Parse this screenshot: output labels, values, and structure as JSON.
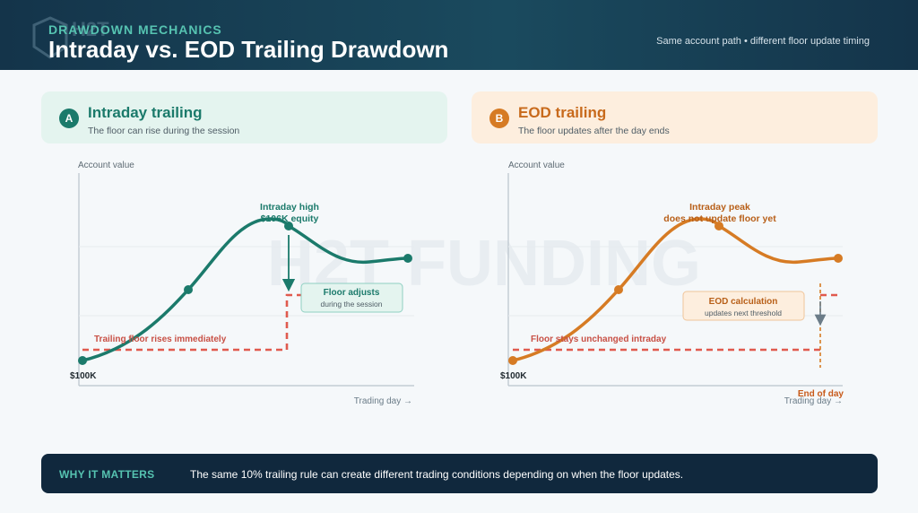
{
  "header": {
    "logo_text": "H2T",
    "eyebrow": "DRAWDOWN MECHANICS",
    "title": "Intraday vs. EOD Trailing Drawdown",
    "subtitle": "Same account path • different floor update timing"
  },
  "watermark": "H2T FUNDING",
  "panels": [
    {
      "badge": "A",
      "title": "Intraday trailing",
      "subtitle": "The floor can rise during the session",
      "accent": "#1b7a6b"
    },
    {
      "badge": "B",
      "title": "EOD trailing",
      "subtitle": "The floor updates after the day ends",
      "accent": "#d67b24"
    }
  ],
  "charts": {
    "intraday": {
      "y_axis_label": "Account value",
      "x_axis_label": "Trading day →",
      "start_label": "$100K",
      "peak_label_line1": "Intraday high",
      "peak_label_line2": "$106K equity",
      "floor_label": "Trailing floor rises immediately",
      "callout_title": "Floor adjusts",
      "callout_sub": "during the session",
      "line_color": "#1b7a6b",
      "floor_color": "#e05a4e"
    },
    "eod": {
      "y_axis_label": "Account value",
      "x_axis_label": "Trading day →",
      "start_label": "$100K",
      "peak_label_line1": "Intraday peak",
      "peak_label_line2": "does not update floor yet",
      "floor_label": "Floor stays unchanged intraday",
      "callout_title": "EOD calculation",
      "callout_sub": "updates next threshold",
      "end_label": "End of day",
      "line_color": "#d67b24",
      "floor_color": "#e05a4e"
    }
  },
  "footer": {
    "label": "WHY IT MATTERS",
    "text": "The same 10% trailing rule can create different trading conditions depending on when the floor updates."
  }
}
